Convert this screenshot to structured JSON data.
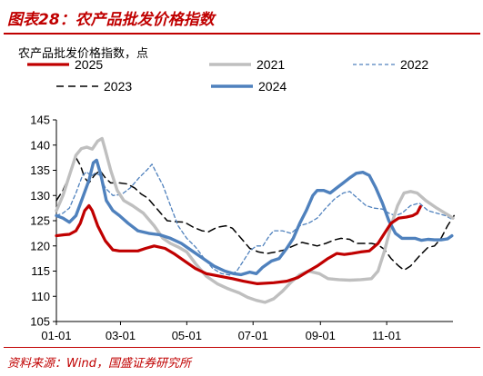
{
  "header": {
    "title": "图表28：农产品批发价格指数"
  },
  "footer": {
    "source": "资料来源：Wind，国盛证券研究所"
  },
  "chart_data": {
    "type": "line",
    "ylabel": "农产品批发价格指数，点",
    "ylim": [
      105,
      145
    ],
    "yticks": [
      105,
      110,
      115,
      120,
      125,
      130,
      135,
      140,
      145
    ],
    "x_tick_labels": [
      "01-01",
      "03-01",
      "05-01",
      "07-01",
      "09-01",
      "11-01"
    ],
    "x_tick_days": [
      0,
      59,
      120,
      181,
      243,
      304
    ],
    "xlim_days": [
      0,
      365
    ],
    "series": [
      {
        "name": "2025",
        "color": "#c00000",
        "dash": "solid",
        "width": 3.2,
        "points": [
          [
            0,
            122
          ],
          [
            7,
            122.2
          ],
          [
            12,
            122.3
          ],
          [
            18,
            123
          ],
          [
            22,
            124.5
          ],
          [
            26,
            127
          ],
          [
            30,
            128
          ],
          [
            33,
            127
          ],
          [
            38,
            124
          ],
          [
            45,
            121
          ],
          [
            52,
            119.2
          ],
          [
            58,
            119
          ],
          [
            65,
            119
          ],
          [
            75,
            119
          ],
          [
            82,
            119.5
          ],
          [
            90,
            120
          ],
          [
            100,
            119.5
          ],
          [
            108,
            118.5
          ],
          [
            118,
            117
          ],
          [
            128,
            115.5
          ],
          [
            138,
            114.5
          ],
          [
            150,
            114
          ],
          [
            162,
            113.5
          ],
          [
            172,
            113
          ],
          [
            185,
            112.5
          ],
          [
            200,
            112.7
          ],
          [
            212,
            113
          ],
          [
            222,
            113.7
          ],
          [
            232,
            115
          ],
          [
            240,
            116
          ],
          [
            250,
            117.5
          ],
          [
            258,
            118.5
          ],
          [
            265,
            118.3
          ],
          [
            272,
            118.5
          ],
          [
            280,
            118.8
          ],
          [
            288,
            119
          ],
          [
            296,
            120.5
          ],
          [
            302,
            122.5
          ],
          [
            308,
            124.5
          ],
          [
            315,
            125.5
          ],
          [
            322,
            125.7
          ],
          [
            328,
            126
          ],
          [
            332,
            126.5
          ],
          [
            335,
            127.8
          ]
        ]
      },
      {
        "name": "2021",
        "color": "#bfbfbf",
        "dash": "solid",
        "width": 3.4,
        "points": [
          [
            0,
            127
          ],
          [
            6,
            130
          ],
          [
            12,
            134
          ],
          [
            18,
            138
          ],
          [
            23,
            139.3
          ],
          [
            28,
            139.6
          ],
          [
            33,
            139.2
          ],
          [
            38,
            140.8
          ],
          [
            42,
            141.3
          ],
          [
            45,
            139
          ],
          [
            50,
            135
          ],
          [
            56,
            131
          ],
          [
            62,
            129
          ],
          [
            70,
            128
          ],
          [
            80,
            126.5
          ],
          [
            90,
            124
          ],
          [
            98,
            121.5
          ],
          [
            105,
            120.5
          ],
          [
            112,
            119.8
          ],
          [
            120,
            118.8
          ],
          [
            128,
            116.5
          ],
          [
            138,
            114
          ],
          [
            148,
            112.5
          ],
          [
            158,
            111.5
          ],
          [
            168,
            110.7
          ],
          [
            176,
            109.8
          ],
          [
            184,
            109.2
          ],
          [
            192,
            108.8
          ],
          [
            200,
            109.5
          ],
          [
            208,
            111
          ],
          [
            216,
            112.8
          ],
          [
            224,
            114.3
          ],
          [
            232,
            115
          ],
          [
            242,
            114.5
          ],
          [
            250,
            113.5
          ],
          [
            260,
            113.3
          ],
          [
            270,
            113.2
          ],
          [
            280,
            113.3
          ],
          [
            290,
            113.5
          ],
          [
            296,
            115
          ],
          [
            302,
            119
          ],
          [
            308,
            124
          ],
          [
            314,
            128
          ],
          [
            320,
            130.5
          ],
          [
            326,
            130.8
          ],
          [
            332,
            130.5
          ],
          [
            340,
            129
          ],
          [
            350,
            127.5
          ],
          [
            360,
            126.2
          ],
          [
            365,
            125.5
          ]
        ]
      },
      {
        "name": "2022",
        "color": "#4f81bd",
        "dash": "4,3",
        "width": 1.3,
        "points": [
          [
            0,
            126
          ],
          [
            6,
            126.5
          ],
          [
            12,
            127.5
          ],
          [
            18,
            130.5
          ],
          [
            24,
            134
          ],
          [
            28,
            134.7
          ],
          [
            32,
            133.8
          ],
          [
            36,
            134.5
          ],
          [
            40,
            134
          ],
          [
            45,
            131.5
          ],
          [
            52,
            130
          ],
          [
            60,
            130.2
          ],
          [
            68,
            131.5
          ],
          [
            76,
            133.5
          ],
          [
            84,
            135.2
          ],
          [
            88,
            136.2
          ],
          [
            92,
            134.5
          ],
          [
            98,
            132
          ],
          [
            105,
            128
          ],
          [
            112,
            124
          ],
          [
            120,
            121.5
          ],
          [
            128,
            119.8
          ],
          [
            136,
            117.5
          ],
          [
            144,
            115.5
          ],
          [
            152,
            114.5
          ],
          [
            160,
            114.2
          ],
          [
            166,
            115
          ],
          [
            172,
            117
          ],
          [
            178,
            119
          ],
          [
            184,
            120
          ],
          [
            190,
            120
          ],
          [
            196,
            122
          ],
          [
            200,
            123
          ],
          [
            208,
            123
          ],
          [
            216,
            122.5
          ],
          [
            224,
            124
          ],
          [
            232,
            124.5
          ],
          [
            240,
            125.5
          ],
          [
            248,
            127.5
          ],
          [
            256,
            129.3
          ],
          [
            264,
            130.5
          ],
          [
            270,
            130.8
          ],
          [
            278,
            129.3
          ],
          [
            285,
            128
          ],
          [
            292,
            127.5
          ],
          [
            300,
            127.3
          ],
          [
            306,
            126.5
          ],
          [
            312,
            126
          ],
          [
            318,
            126.5
          ],
          [
            326,
            128
          ],
          [
            334,
            128.5
          ],
          [
            342,
            127
          ],
          [
            350,
            126.5
          ],
          [
            358,
            126
          ],
          [
            364,
            125.3
          ]
        ]
      },
      {
        "name": "2023",
        "color": "#000000",
        "dash": "8,5",
        "width": 1.5,
        "points": [
          [
            0,
            129
          ],
          [
            6,
            131
          ],
          [
            12,
            134
          ],
          [
            18,
            137.5
          ],
          [
            22,
            136
          ],
          [
            26,
            133.5
          ],
          [
            30,
            132.5
          ],
          [
            35,
            134
          ],
          [
            40,
            135
          ],
          [
            45,
            133.5
          ],
          [
            50,
            132.5
          ],
          [
            58,
            132.5
          ],
          [
            65,
            132.3
          ],
          [
            72,
            131.5
          ],
          [
            78,
            130.3
          ],
          [
            84,
            129.5
          ],
          [
            90,
            128
          ],
          [
            96,
            126.5
          ],
          [
            102,
            125
          ],
          [
            110,
            124.8
          ],
          [
            118,
            124.7
          ],
          [
            126,
            123.7
          ],
          [
            134,
            123
          ],
          [
            140,
            122.8
          ],
          [
            148,
            123.7
          ],
          [
            156,
            124
          ],
          [
            162,
            123.5
          ],
          [
            170,
            121.5
          ],
          [
            178,
            119.5
          ],
          [
            186,
            118.8
          ],
          [
            194,
            118.5
          ],
          [
            202,
            118.8
          ],
          [
            210,
            119.2
          ],
          [
            218,
            120
          ],
          [
            226,
            120.7
          ],
          [
            234,
            120.3
          ],
          [
            240,
            120
          ],
          [
            248,
            120.5
          ],
          [
            256,
            121.2
          ],
          [
            262,
            121.5
          ],
          [
            270,
            121.3
          ],
          [
            276,
            120.5
          ],
          [
            282,
            120.5
          ],
          [
            290,
            120.5
          ],
          [
            296,
            120.2
          ],
          [
            302,
            119.3
          ],
          [
            308,
            117.5
          ],
          [
            315,
            116
          ],
          [
            320,
            115.2
          ],
          [
            326,
            116
          ],
          [
            334,
            118
          ],
          [
            342,
            119.7
          ],
          [
            348,
            120
          ],
          [
            354,
            121.5
          ],
          [
            360,
            124
          ],
          [
            366,
            126
          ]
        ]
      },
      {
        "name": "2024",
        "color": "#4f81bd",
        "dash": "solid",
        "width": 3.4,
        "points": [
          [
            0,
            126
          ],
          [
            6,
            125.5
          ],
          [
            12,
            124.7
          ],
          [
            18,
            126
          ],
          [
            24,
            129.5
          ],
          [
            30,
            133
          ],
          [
            34,
            136.5
          ],
          [
            37,
            137
          ],
          [
            41,
            134
          ],
          [
            46,
            129
          ],
          [
            52,
            127
          ],
          [
            58,
            126
          ],
          [
            66,
            124.5
          ],
          [
            75,
            123
          ],
          [
            85,
            122.5
          ],
          [
            95,
            122.2
          ],
          [
            105,
            121.5
          ],
          [
            115,
            120.5
          ],
          [
            125,
            119
          ],
          [
            135,
            117.5
          ],
          [
            145,
            116
          ],
          [
            155,
            115
          ],
          [
            163,
            114.5
          ],
          [
            170,
            114.3
          ],
          [
            178,
            114.8
          ],
          [
            184,
            114.5
          ],
          [
            190,
            115.8
          ],
          [
            198,
            117
          ],
          [
            205,
            117.5
          ],
          [
            212,
            119.5
          ],
          [
            218,
            121.5
          ],
          [
            224,
            124.5
          ],
          [
            230,
            127
          ],
          [
            236,
            130
          ],
          [
            240,
            131
          ],
          [
            246,
            131
          ],
          [
            252,
            130.5
          ],
          [
            258,
            131.5
          ],
          [
            264,
            132.5
          ],
          [
            270,
            133.5
          ],
          [
            276,
            134.4
          ],
          [
            282,
            134.6
          ],
          [
            288,
            134
          ],
          [
            294,
            131.5
          ],
          [
            300,
            128.5
          ],
          [
            306,
            125
          ],
          [
            312,
            122.5
          ],
          [
            318,
            121.5
          ],
          [
            324,
            121.5
          ],
          [
            330,
            121.5
          ],
          [
            336,
            121.1
          ],
          [
            342,
            121.3
          ],
          [
            348,
            121.2
          ],
          [
            354,
            121.2
          ],
          [
            360,
            121.4
          ],
          [
            364,
            122
          ]
        ]
      }
    ]
  }
}
